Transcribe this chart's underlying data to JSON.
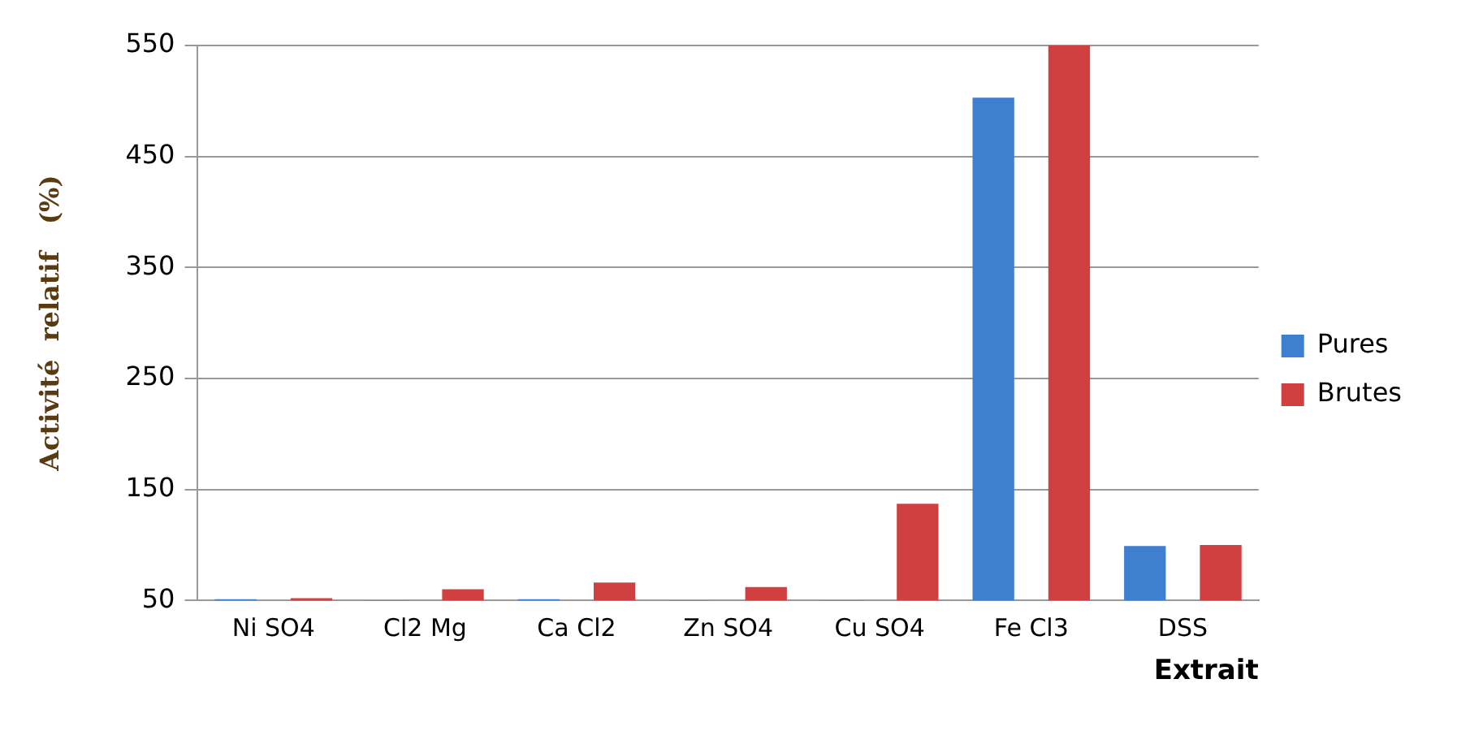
{
  "chart_data": {
    "type": "bar",
    "xlabel": "Extrait",
    "ylabel": "Activité  relatif   (%)",
    "categories": [
      "Ni SO4",
      "Cl2 Mg",
      "Ca Cl2",
      "Zn SO4",
      "Cu SO4",
      "Fe Cl3",
      "DSS"
    ],
    "series": [
      {
        "name": "Pures",
        "color": "#3f7fcf",
        "values": [
          51,
          50,
          51,
          50,
          50,
          503,
          99
        ]
      },
      {
        "name": "Brutes",
        "color": "#d04040",
        "values": [
          52,
          60,
          66,
          62,
          137,
          550,
          100
        ]
      }
    ],
    "ylim": [
      50,
      550
    ],
    "yticks": [
      50,
      150,
      250,
      350,
      450,
      550
    ],
    "grid": "y",
    "legend": "right"
  }
}
